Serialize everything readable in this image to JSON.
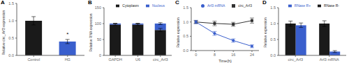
{
  "chart_data": [
    {
      "type": "bar",
      "title": "A",
      "categories": [
        "Control",
        "HG"
      ],
      "values": [
        1.0,
        0.4
      ],
      "errors": [
        0.12,
        0.06
      ],
      "colors": [
        "#1a1a1a",
        "#3a5fcd"
      ],
      "ylabel": "Relative circ_Arf3 expression",
      "ylim": [
        0,
        1.5
      ],
      "yticks": [
        {
          "value": 0,
          "label": "0.0"
        },
        0.5,
        {
          "value": 1,
          "label": "1.0"
        },
        1.5
      ],
      "annotations": [
        {
          "text": "*",
          "x": "HG",
          "y": 0.52
        }
      ]
    },
    {
      "type": "bar",
      "title": "B",
      "stacked": true,
      "legend": "upper right",
      "categories": [
        "GAPDH",
        "U6",
        "circ_Arf3"
      ],
      "series": [
        {
          "name": "Cytoplasm",
          "color": "#1a1a1a",
          "values": [
            97,
            97,
            80
          ],
          "errors": [
            3,
            3,
            5
          ]
        },
        {
          "name": "Nucleus",
          "color": "#3a5fcd",
          "values": [
            3,
            3,
            20
          ],
          "errors": [
            1,
            1,
            3
          ]
        }
      ],
      "ylabel": "Relative RNA expression",
      "ylim": [
        0,
        150
      ],
      "yticks": [
        0,
        50,
        100,
        150
      ]
    },
    {
      "type": "line",
      "title": "C",
      "legend": "upper right",
      "x": [
        0,
        8,
        16,
        24
      ],
      "series": [
        {
          "name": "circ_Arf3",
          "color": "#333333",
          "marker": "square",
          "values": [
            1.0,
            0.95,
            0.92,
            1.05
          ],
          "errors": [
            0.05,
            0.08,
            0.07,
            0.09
          ]
        },
        {
          "name": "Arf3 mRNA",
          "color": "#3a5fcd",
          "marker": "circle",
          "values": [
            1.0,
            0.6,
            0.35,
            0.15
          ],
          "errors": [
            0.06,
            0.07,
            0.06,
            0.05
          ]
        }
      ],
      "xlabel": "Time(h)",
      "ylabel": "Relative expression",
      "xlim": [
        -2,
        27
      ],
      "xticks": [
        0,
        8,
        16,
        24
      ],
      "ylim": [
        0,
        1.5
      ],
      "yticks": [
        {
          "value": 0,
          "label": "0.0"
        },
        0.5,
        {
          "value": 1,
          "label": "1.0"
        },
        1.5
      ]
    },
    {
      "type": "bar",
      "title": "D",
      "legend": "upper right",
      "categories": [
        "circ_Arf3",
        "Arf3 mRNA"
      ],
      "series": [
        {
          "name": "RNase R-",
          "color": "#1a1a1a",
          "values": [
            1.0,
            1.0
          ],
          "errors": [
            0.08,
            0.09
          ]
        },
        {
          "name": "RNase R+",
          "color": "#3a5fcd",
          "values": [
            0.95,
            0.12
          ],
          "errors": [
            0.07,
            0.03
          ]
        }
      ],
      "ylabel": "Relative expression",
      "ylim": [
        0,
        1.5
      ],
      "yticks": [
        {
          "value": 0,
          "label": "0.0"
        },
        0.5,
        {
          "value": 1,
          "label": "1.0"
        },
        1.5
      ]
    }
  ]
}
